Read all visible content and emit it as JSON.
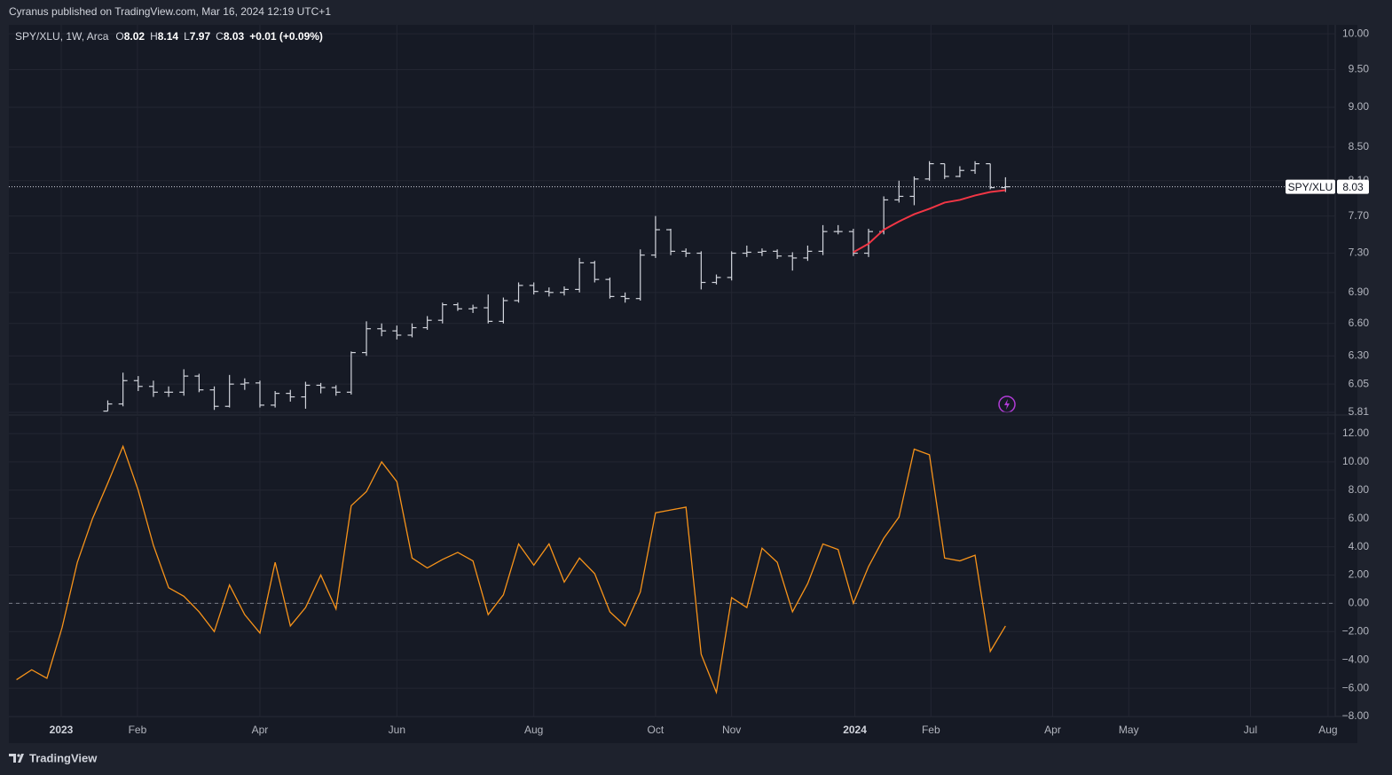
{
  "header": {
    "publisher": "Cyranus published on TradingView.com, Mar 16, 2024 12:19 UTC+1"
  },
  "chart_data": [
    {
      "type": "ohlc",
      "legend": "SPY/XLU, 1W, Arca",
      "symbol": "SPY/XLU",
      "ohlc_labels": [
        "O",
        "H",
        "L",
        "C"
      ],
      "change_label": "+0.01 (+0.09%)",
      "color": "#d1d4dc",
      "log_scale": true,
      "grid": true,
      "xlim": [
        0,
        87.17
      ],
      "x": [
        6.5,
        7.5,
        8.5,
        9.5,
        10.5,
        11.5,
        12.5,
        13.5,
        14.5,
        15.5,
        16.5,
        17.5,
        18.5,
        19.5,
        20.5,
        21.5,
        22.5,
        23.5,
        24.5,
        25.5,
        26.5,
        27.5,
        28.5,
        29.5,
        30.5,
        31.5,
        32.5,
        33.5,
        34.5,
        35.5,
        36.5,
        37.5,
        38.5,
        39.5,
        40.5,
        41.5,
        42.5,
        43.5,
        44.5,
        45.5,
        46.5,
        47.5,
        48.5,
        49.5,
        50.5,
        51.5,
        52.5,
        53.5,
        54.5,
        55.5,
        56.5,
        57.5,
        58.5,
        59.5,
        60.5,
        61.5,
        62.5,
        63.5,
        64.5,
        65.5
      ],
      "open": [
        5.82,
        5.88,
        6.08,
        6.03,
        5.98,
        5.98,
        6.12,
        6.0,
        5.86,
        6.05,
        6.06,
        5.87,
        5.97,
        5.94,
        6.04,
        6.02,
        5.98,
        6.33,
        6.55,
        6.53,
        6.49,
        6.56,
        6.63,
        6.78,
        6.74,
        6.75,
        6.62,
        6.82,
        6.97,
        6.91,
        6.9,
        6.93,
        7.2,
        7.03,
        6.86,
        6.84,
        7.28,
        7.55,
        7.32,
        7.3,
        7.0,
        7.05,
        7.3,
        7.31,
        7.32,
        7.27,
        7.25,
        7.32,
        7.53,
        7.53,
        7.3,
        7.53,
        7.88,
        7.92,
        8.12,
        8.3,
        8.15,
        8.22,
        8.3,
        8.02
      ],
      "high": [
        5.91,
        6.15,
        6.12,
        6.08,
        6.03,
        6.18,
        6.14,
        6.03,
        6.13,
        6.1,
        6.08,
        5.99,
        6.0,
        6.07,
        6.06,
        6.04,
        6.34,
        6.62,
        6.6,
        6.58,
        6.6,
        6.67,
        6.8,
        6.8,
        6.78,
        6.88,
        6.85,
        7.0,
        7.0,
        6.95,
        6.96,
        7.25,
        7.22,
        7.05,
        6.9,
        7.34,
        7.7,
        7.56,
        7.35,
        7.32,
        7.08,
        7.32,
        7.38,
        7.35,
        7.34,
        7.31,
        7.38,
        7.6,
        7.6,
        7.56,
        7.56,
        7.92,
        8.1,
        8.15,
        8.33,
        8.3,
        8.27,
        8.33,
        8.3,
        8.14
      ],
      "low": [
        5.82,
        5.86,
        5.99,
        5.94,
        5.94,
        5.95,
        5.98,
        5.83,
        5.85,
        6.0,
        5.85,
        5.85,
        5.9,
        5.84,
        5.97,
        5.95,
        5.96,
        6.3,
        6.48,
        6.45,
        6.47,
        6.54,
        6.6,
        6.72,
        6.7,
        6.6,
        6.6,
        6.8,
        6.88,
        6.86,
        6.87,
        6.9,
        7.0,
        6.84,
        6.8,
        6.82,
        7.25,
        7.28,
        7.26,
        6.93,
        6.98,
        7.02,
        7.26,
        7.27,
        7.24,
        7.12,
        7.22,
        7.28,
        7.5,
        7.27,
        7.26,
        7.5,
        7.85,
        7.82,
        8.1,
        8.12,
        8.14,
        8.18,
        8.0,
        7.97
      ],
      "close": [
        5.88,
        6.08,
        6.03,
        5.98,
        5.98,
        6.12,
        6.0,
        5.86,
        6.05,
        6.06,
        5.87,
        5.97,
        5.94,
        6.04,
        6.02,
        5.98,
        6.33,
        6.55,
        6.53,
        6.49,
        6.56,
        6.63,
        6.78,
        6.74,
        6.75,
        6.62,
        6.82,
        6.97,
        6.91,
        6.9,
        6.93,
        7.2,
        7.03,
        6.86,
        6.84,
        7.28,
        7.55,
        7.32,
        7.3,
        7.0,
        7.05,
        7.3,
        7.31,
        7.32,
        7.27,
        7.25,
        7.32,
        7.53,
        7.53,
        7.3,
        7.53,
        7.88,
        7.92,
        8.12,
        8.3,
        8.15,
        8.22,
        8.3,
        8.02,
        8.03
      ],
      "ma": {
        "color": "#f23645",
        "values": [
          null,
          null,
          null,
          null,
          null,
          null,
          null,
          null,
          null,
          null,
          null,
          null,
          null,
          null,
          null,
          null,
          null,
          null,
          null,
          null,
          null,
          null,
          null,
          null,
          null,
          null,
          null,
          null,
          null,
          null,
          null,
          null,
          null,
          null,
          null,
          null,
          null,
          null,
          null,
          null,
          null,
          null,
          null,
          null,
          null,
          null,
          null,
          null,
          null,
          7.31,
          7.4,
          7.55,
          7.64,
          7.72,
          7.78,
          7.85,
          7.88,
          7.93,
          7.97,
          7.99
        ]
      },
      "ylim": [
        5.795,
        10.13
      ],
      "yticks": [
        {
          "value": 10,
          "label": "10.00"
        },
        {
          "value": 9.5,
          "label": "9.50"
        },
        {
          "value": 9,
          "label": "9.00"
        },
        {
          "value": 8.5,
          "label": "8.50"
        },
        {
          "value": 8.1,
          "label": "8.10"
        },
        {
          "value": 7.7,
          "label": "7.70"
        },
        {
          "value": 7.3,
          "label": "7.30"
        },
        {
          "value": 6.9,
          "label": "6.90"
        },
        {
          "value": 6.6,
          "label": "6.60"
        },
        {
          "value": 6.3,
          "label": "6.30"
        },
        {
          "value": 6.05,
          "label": "6.05"
        },
        {
          "value": 5.81,
          "label": "5.81"
        }
      ]
    },
    {
      "type": "line",
      "grid": true,
      "hline": 0,
      "xlim": [
        0,
        87.17
      ],
      "xticks": [
        {
          "value": 3.44,
          "label": "2023"
        },
        {
          "value": 8.45,
          "label": "Feb"
        },
        {
          "value": 16.5,
          "label": "Apr"
        },
        {
          "value": 25.5,
          "label": "Jun"
        },
        {
          "value": 34.5,
          "label": "Aug"
        },
        {
          "value": 42.5,
          "label": "Oct"
        },
        {
          "value": 47.5,
          "label": "Nov"
        },
        {
          "value": 55.6,
          "label": "2024"
        },
        {
          "value": 60.6,
          "label": "Feb"
        },
        {
          "value": 68.6,
          "label": "Apr"
        },
        {
          "value": 73.6,
          "label": "May"
        },
        {
          "value": 81.6,
          "label": "Jul"
        },
        {
          "value": 86.7,
          "label": "Aug"
        }
      ],
      "x": [
        0.5,
        1.5,
        2.5,
        3.5,
        4.5,
        5.5,
        6.5,
        7.5,
        8.5,
        9.5,
        10.5,
        11.5,
        12.5,
        13.5,
        14.5,
        15.5,
        16.5,
        17.5,
        18.5,
        19.5,
        20.5,
        21.5,
        22.5,
        23.5,
        24.5,
        25.5,
        26.5,
        27.5,
        28.5,
        29.5,
        30.5,
        31.5,
        32.5,
        33.5,
        34.5,
        35.5,
        36.5,
        37.5,
        38.5,
        39.5,
        40.5,
        41.5,
        42.5,
        43.5,
        44.5,
        45.5,
        46.5,
        47.5,
        48.5,
        49.5,
        50.5,
        51.5,
        52.5,
        53.5,
        54.5,
        55.5,
        56.5,
        57.5,
        58.5,
        59.5,
        60.5,
        61.5,
        62.5,
        63.5,
        64.5,
        65.5
      ],
      "series": [
        {
          "color": "#f7931a",
          "values": [
            -5.4,
            -4.7,
            -5.3,
            -1.7,
            2.9,
            6.0,
            8.5,
            11.1,
            8.0,
            4.1,
            1.1,
            0.5,
            -0.6,
            -2.0,
            1.3,
            -0.8,
            -2.1,
            2.9,
            -1.6,
            -0.3,
            2.0,
            -0.4,
            6.9,
            7.9,
            10.0,
            8.6,
            3.2,
            2.5,
            3.1,
            3.6,
            3.0,
            -0.8,
            0.6,
            4.2,
            2.7,
            4.2,
            1.5,
            3.2,
            2.1,
            -0.6,
            -1.6,
            0.8,
            6.4,
            6.6,
            6.8,
            -3.6,
            -6.3,
            0.4,
            -0.3,
            3.9,
            2.9,
            -0.6,
            1.4,
            4.2,
            3.8,
            0.0,
            2.6,
            4.6,
            6.1,
            10.9,
            10.5,
            3.2,
            3.0,
            3.4,
            -3.4,
            -1.6
          ]
        }
      ],
      "ylim": [
        -8,
        13.19
      ],
      "yticks": [
        {
          "value": 12,
          "label": "12.00"
        },
        {
          "value": 10,
          "label": "10.00"
        },
        {
          "value": 8,
          "label": "8.00"
        },
        {
          "value": 6,
          "label": "6.00"
        },
        {
          "value": 4,
          "label": "4.00"
        },
        {
          "value": 2,
          "label": "2.00"
        },
        {
          "value": 0,
          "label": "0.00"
        },
        {
          "value": -2,
          "label": "−2.00"
        },
        {
          "value": -4,
          "label": "−4.00"
        },
        {
          "value": -6,
          "label": "−6.00"
        },
        {
          "value": -8,
          "label": "−8.00"
        }
      ]
    }
  ],
  "footer": {
    "brand": "TradingView"
  }
}
